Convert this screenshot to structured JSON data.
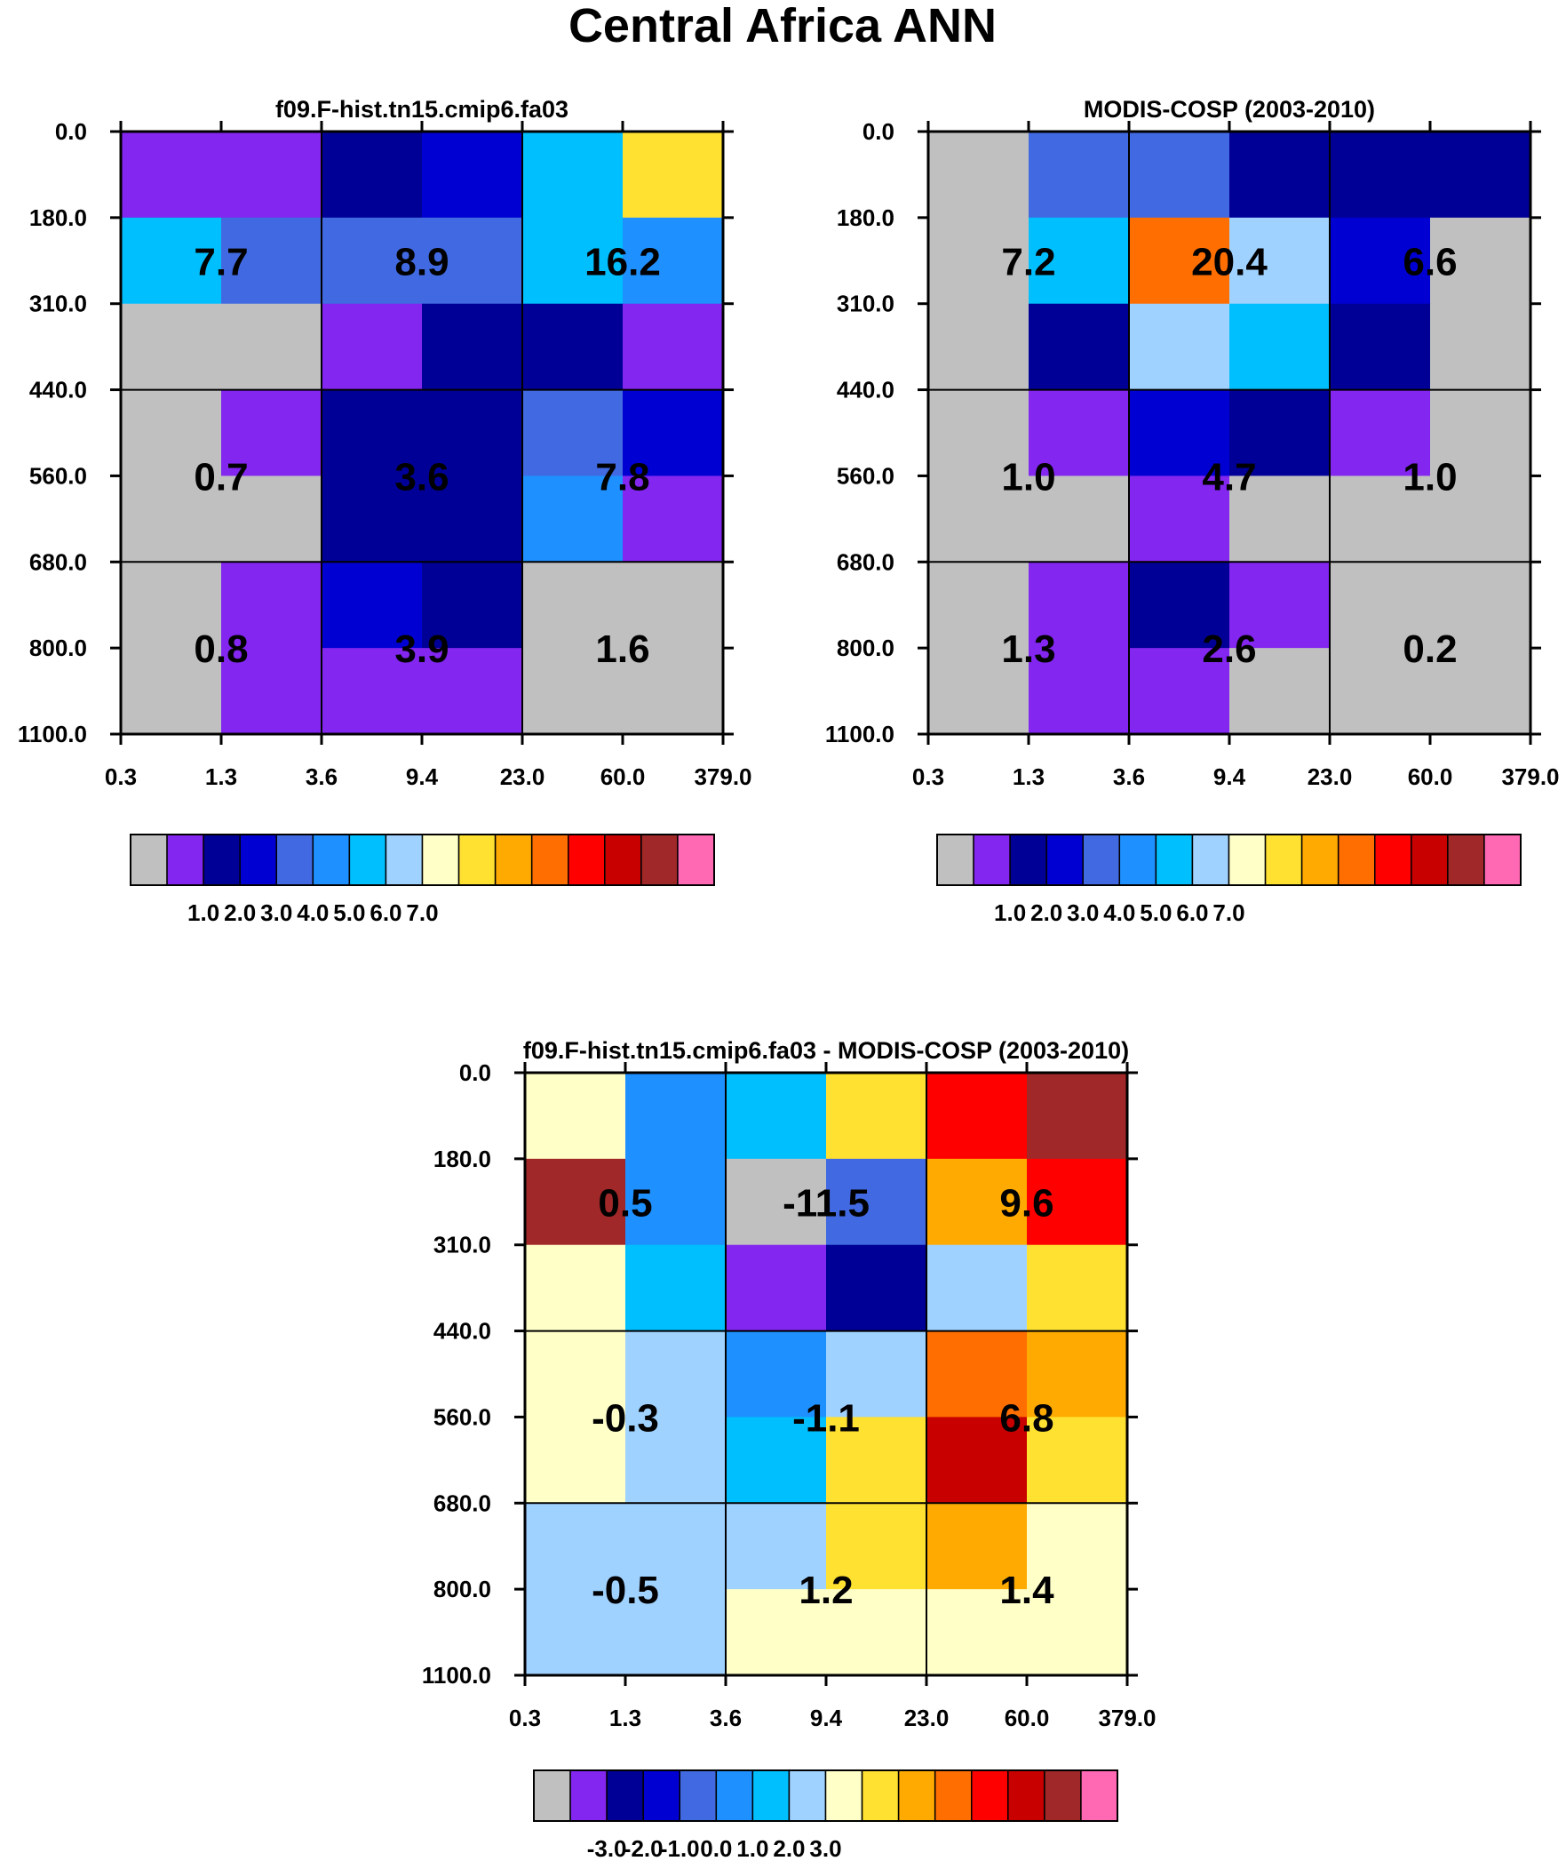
{
  "title": "Central Africa ANN",
  "palette": [
    "#c0c0c0",
    "#8226f0",
    "#000096",
    "#0000d2",
    "#4169e1",
    "#1e90ff",
    "#00bfff",
    "#a0d2ff",
    "#ffffc8",
    "#ffe132",
    "#ffaa00",
    "#ff6e00",
    "#ff0000",
    "#c80000",
    "#a02828",
    "#ff69b4"
  ],
  "chart_data": [
    {
      "type": "heatmap",
      "title": "f09.F-hist.tn15.cmip6.fa03",
      "x_ticks": [
        "0.3",
        "1.3",
        "3.6",
        "9.4",
        "23.0",
        "60.0",
        "379.0"
      ],
      "y_ticks": [
        "0.0",
        "180.0",
        "310.0",
        "440.0",
        "560.0",
        "680.0",
        "800.0",
        "1100.0"
      ],
      "grid": [
        [
          1,
          1,
          2,
          3,
          6,
          9
        ],
        [
          6,
          4,
          4,
          4,
          6,
          5
        ],
        [
          0,
          0,
          1,
          2,
          2,
          1
        ],
        [
          0,
          1,
          2,
          2,
          4,
          3
        ],
        [
          0,
          0,
          2,
          2,
          5,
          1
        ],
        [
          0,
          1,
          3,
          2,
          0,
          0
        ],
        [
          0,
          1,
          1,
          1,
          0,
          0
        ]
      ],
      "annotations": [
        [
          "7.7",
          "8.9",
          "16.2"
        ],
        [
          "0.7",
          "3.6",
          "7.8"
        ],
        [
          "0.8",
          "3.9",
          "1.6"
        ]
      ],
      "colorbar": {
        "labels": [
          "1.0",
          "2.0",
          "3.0",
          "4.0",
          "5.0",
          "6.0",
          "7.0"
        ],
        "levels": [
          1,
          2,
          3,
          4,
          5,
          6,
          7
        ]
      }
    },
    {
      "type": "heatmap",
      "title": "MODIS-COSP (2003-2010)",
      "x_ticks": [
        "0.3",
        "1.3",
        "3.6",
        "9.4",
        "23.0",
        "60.0",
        "379.0"
      ],
      "y_ticks": [
        "0.0",
        "180.0",
        "310.0",
        "440.0",
        "560.0",
        "680.0",
        "800.0",
        "1100.0"
      ],
      "grid": [
        [
          0,
          4,
          4,
          2,
          2,
          2
        ],
        [
          0,
          6,
          11,
          7,
          3,
          0
        ],
        [
          0,
          2,
          7,
          6,
          2,
          0
        ],
        [
          0,
          1,
          3,
          2,
          1,
          0
        ],
        [
          0,
          0,
          1,
          0,
          0,
          0
        ],
        [
          0,
          1,
          2,
          1,
          0,
          0
        ],
        [
          0,
          1,
          1,
          0,
          0,
          0
        ]
      ],
      "annotations": [
        [
          "7.2",
          "20.4",
          "6.6"
        ],
        [
          "1.0",
          "4.7",
          "1.0"
        ],
        [
          "1.3",
          "2.6",
          "0.2"
        ]
      ],
      "colorbar": {
        "labels": [
          "1.0",
          "2.0",
          "3.0",
          "4.0",
          "5.0",
          "6.0",
          "7.0"
        ],
        "levels": [
          1,
          2,
          3,
          4,
          5,
          6,
          7
        ]
      }
    },
    {
      "type": "heatmap",
      "title": "f09.F-hist.tn15.cmip6.fa03 - MODIS-COSP (2003-2010)",
      "x_ticks": [
        "0.3",
        "1.3",
        "3.6",
        "9.4",
        "23.0",
        "60.0",
        "379.0"
      ],
      "y_ticks": [
        "0.0",
        "180.0",
        "310.0",
        "440.0",
        "560.0",
        "680.0",
        "800.0",
        "1100.0"
      ],
      "grid": [
        [
          8,
          5,
          6,
          9,
          12,
          14
        ],
        [
          14,
          5,
          0,
          4,
          10,
          12
        ],
        [
          8,
          6,
          1,
          2,
          7,
          9
        ],
        [
          8,
          7,
          5,
          7,
          11,
          10
        ],
        [
          8,
          7,
          6,
          9,
          13,
          9
        ],
        [
          7,
          7,
          7,
          9,
          10,
          8
        ],
        [
          7,
          7,
          8,
          8,
          8,
          8
        ]
      ],
      "annotations": [
        [
          "0.5",
          "-11.5",
          "9.6"
        ],
        [
          "-0.3",
          "-1.1",
          "6.8"
        ],
        [
          "-0.5",
          "1.2",
          "1.4"
        ]
      ],
      "colorbar": {
        "labels": [
          "-3.0",
          "-2.0",
          "-1.0",
          "0.0",
          "1.0",
          "2.0",
          "3.0"
        ],
        "levels": [
          -3,
          -2,
          -1,
          0,
          1,
          2,
          3
        ]
      }
    }
  ]
}
